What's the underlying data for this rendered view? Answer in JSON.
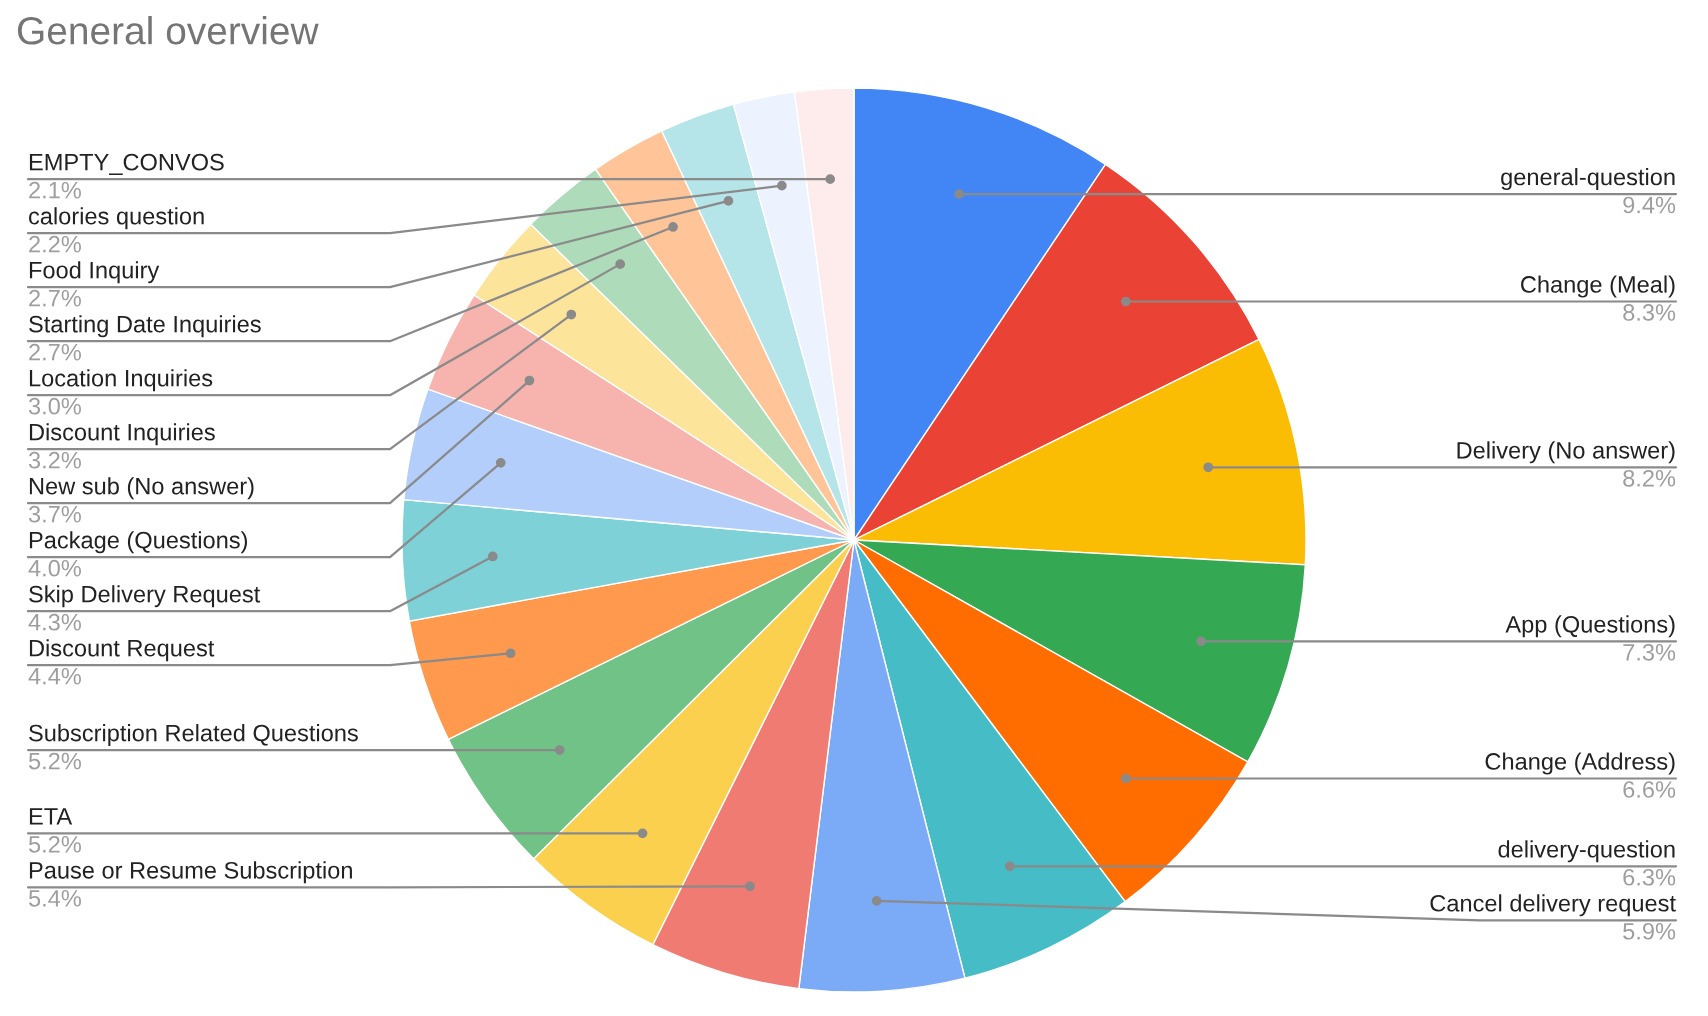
{
  "chart_data": {
    "type": "pie",
    "title": "General overview",
    "categories": [
      "general-question",
      "Change (Meal)",
      "Delivery (No answer)",
      "App (Questions)",
      "Change (Address)",
      "delivery-question",
      "Cancel delivery request",
      "Pause or Resume Subscription",
      "ETA",
      "Subscription Related Questions",
      "Discount Request",
      "Skip Delivery Request",
      "Package (Questions)",
      "New sub (No answer)",
      "Discount Inquiries",
      "Location Inquiries",
      "Starting Date Inquiries",
      "Food Inquiry",
      "calories question",
      "EMPTY_CONVOS"
    ],
    "values": [
      9.4,
      8.3,
      8.2,
      7.3,
      6.6,
      6.3,
      5.9,
      5.4,
      5.2,
      5.2,
      4.4,
      4.3,
      4.0,
      3.7,
      3.2,
      3.0,
      2.7,
      2.7,
      2.2,
      2.1
    ],
    "value_labels": [
      "9.4%",
      "8.3%",
      "8.2%",
      "7.3%",
      "6.6%",
      "6.3%",
      "5.9%",
      "5.4%",
      "5.2%",
      "5.2%",
      "4.4%",
      "4.3%",
      "4.0%",
      "3.7%",
      "3.2%",
      "3.0%",
      "2.7%",
      "2.7%",
      "2.2%",
      "2.1%"
    ],
    "colors": [
      "#4285f4",
      "#ea4335",
      "#fbbc04",
      "#34a853",
      "#ff6d01",
      "#46bdc6",
      "#7baaf7",
      "#f07b72",
      "#fcd04f",
      "#71c287",
      "#ff994d",
      "#7ed1d7",
      "#b3cefb",
      "#f7b4ae",
      "#fde49b",
      "#aedcba",
      "#ffc599",
      "#b5e5e8",
      "#ecf2fe",
      "#fdeceb"
    ],
    "legend": false
  }
}
